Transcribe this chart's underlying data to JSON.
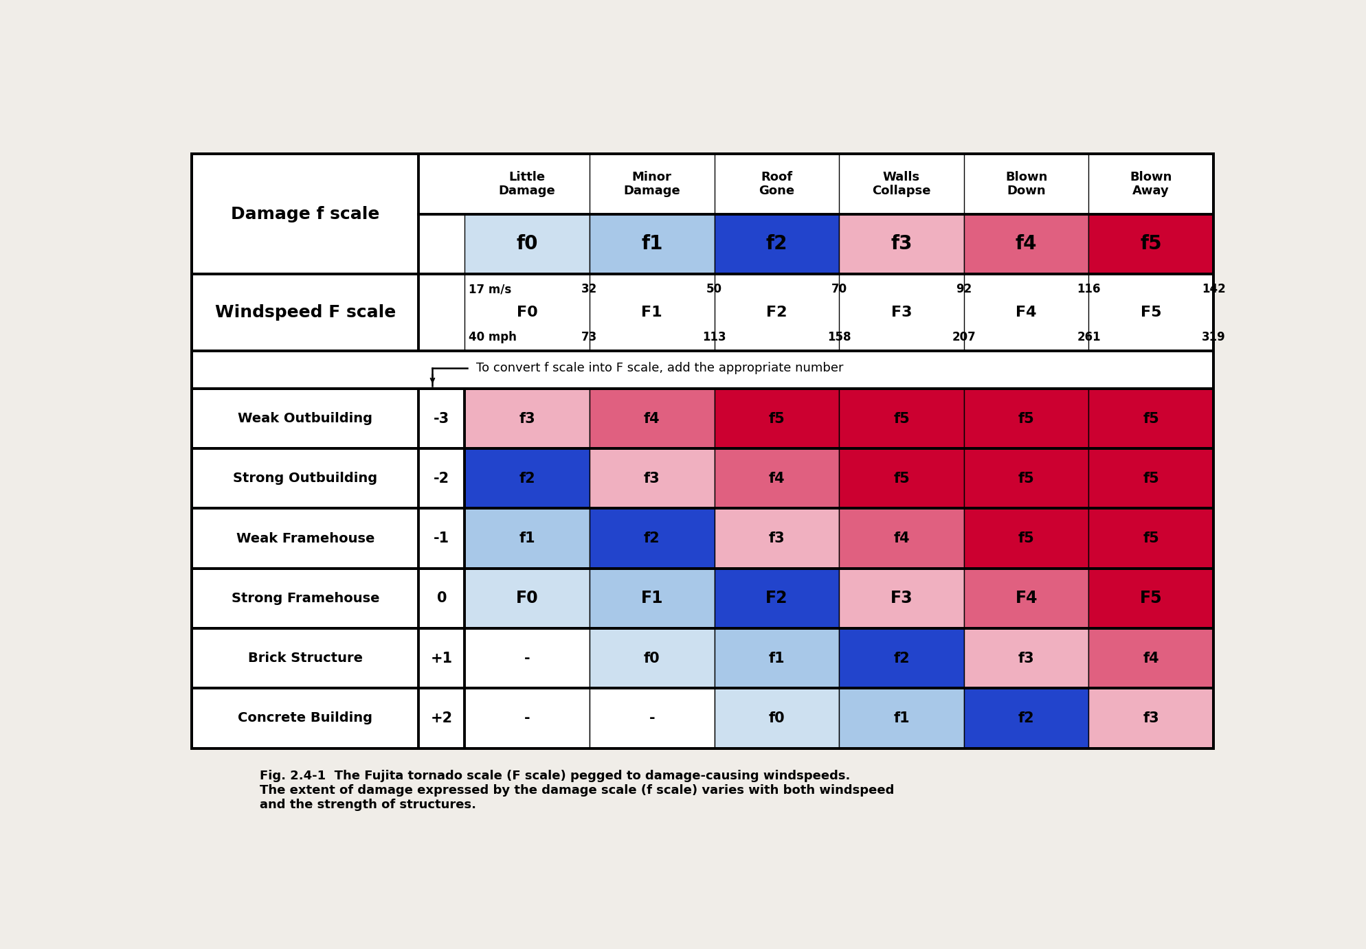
{
  "fig_width": 19.88,
  "fig_height": 13.82,
  "bg_color": "#f0ede8",
  "title_row1_labels": [
    "Little\nDamage",
    "Minor\nDamage",
    "Roof\nGone",
    "Walls\nCollapse",
    "Blown\nDown",
    "Blown\nAway"
  ],
  "damage_f_labels": [
    "f0",
    "f1",
    "f2",
    "f3",
    "f4",
    "f5"
  ],
  "damage_f_colors": [
    "#cde0f0",
    "#a8c8e8",
    "#2244cc",
    "#f0b0c0",
    "#e06080",
    "#cc0030"
  ],
  "windspeed_mps": [
    "17 m/s",
    "32",
    "50",
    "70",
    "92",
    "116",
    "142"
  ],
  "windspeed_F": [
    "F0",
    "F1",
    "F2",
    "F3",
    "F4",
    "F5"
  ],
  "windspeed_mph": [
    "40 mph",
    "73",
    "113",
    "158",
    "207",
    "261",
    "319"
  ],
  "structure_rows": [
    {
      "label": "Weak Outbuilding",
      "offset": "-3",
      "cells": [
        "f3",
        "f4",
        "f5",
        "f5",
        "f5",
        "f5"
      ],
      "colors": [
        "#f0b0c0",
        "#e06080",
        "#cc0030",
        "#cc0030",
        "#cc0030",
        "#cc0030"
      ]
    },
    {
      "label": "Strong Outbuilding",
      "offset": "-2",
      "cells": [
        "f2",
        "f3",
        "f4",
        "f5",
        "f5",
        "f5"
      ],
      "colors": [
        "#2244cc",
        "#f0b0c0",
        "#e06080",
        "#cc0030",
        "#cc0030",
        "#cc0030"
      ]
    },
    {
      "label": "Weak Framehouse",
      "offset": "-1",
      "cells": [
        "f1",
        "f2",
        "f3",
        "f4",
        "f5",
        "f5"
      ],
      "colors": [
        "#a8c8e8",
        "#2244cc",
        "#f0b0c0",
        "#e06080",
        "#cc0030",
        "#cc0030"
      ]
    },
    {
      "label": "Strong Framehouse",
      "offset": "0",
      "cells": [
        "F0",
        "F1",
        "F2",
        "F3",
        "F4",
        "F5"
      ],
      "colors": [
        "#cde0f0",
        "#a8c8e8",
        "#2244cc",
        "#f0b0c0",
        "#e06080",
        "#cc0030"
      ]
    },
    {
      "label": "Brick Structure",
      "offset": "+1",
      "cells": [
        "-",
        "f0",
        "f1",
        "f2",
        "f3",
        "f4"
      ],
      "colors": [
        "#ffffff",
        "#cde0f0",
        "#a8c8e8",
        "#2244cc",
        "#f0b0c0",
        "#e06080"
      ]
    },
    {
      "label": "Concrete Building",
      "offset": "+2",
      "cells": [
        "-",
        "-",
        "f0",
        "f1",
        "f2",
        "f3"
      ],
      "colors": [
        "#ffffff",
        "#ffffff",
        "#cde0f0",
        "#a8c8e8",
        "#2244cc",
        "#f0b0c0"
      ]
    }
  ],
  "caption": "Fig. 2.4-1  The Fujita tornado scale (F scale) pegged to damage-causing windspeeds.\nThe extent of damage expressed by the damage scale (f scale) varies with both windspeed\nand the strength of structures."
}
